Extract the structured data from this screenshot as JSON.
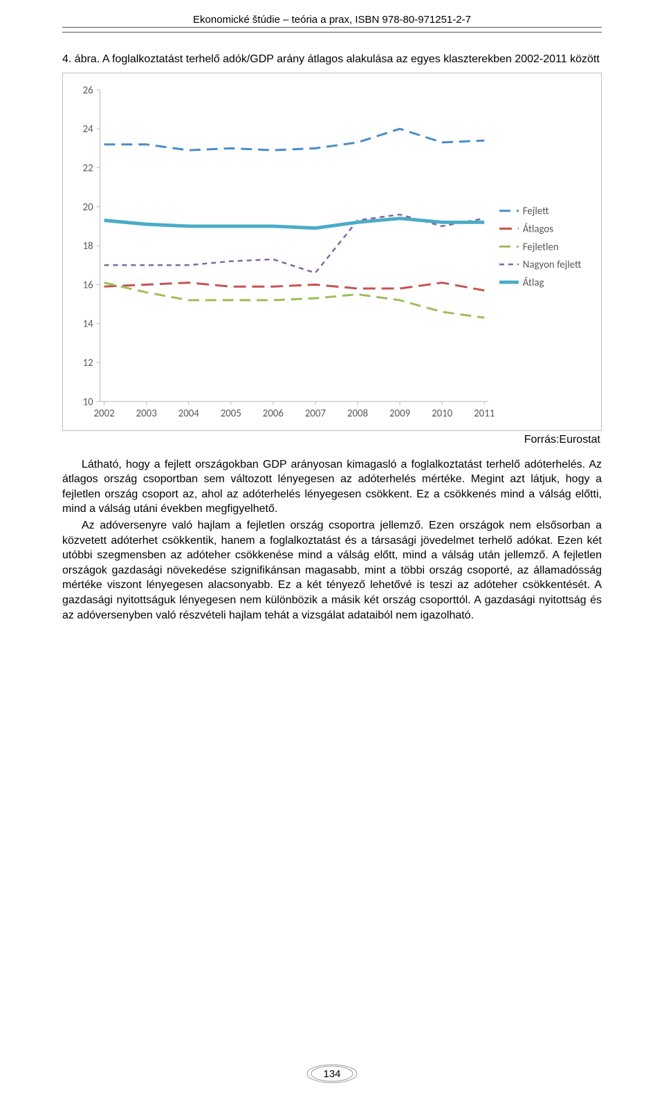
{
  "header": "Ekonomické štúdie – teória a prax, ISBN 978-80-971251-2-7",
  "figure_caption_prefix": "4. ábra. ",
  "figure_caption": "A foglalkoztatást terhelő adók/GDP arány átlagos alakulása az egyes klaszterekben 2002-2011 között",
  "source": "Forrás:Eurostat",
  "paragraph1": "Látható, hogy a fejlett országokban GDP arányosan kimagasló a foglalkoztatást terhelő adóterhelés. Az átlagos ország csoportban sem változott lényegesen az adóterhelés mértéke. Megint azt látjuk, hogy a fejletlen ország csoport az, ahol az adóterhelés lényegesen csökkent. Ez a csökkenés mind a válság előtti, mind a válság utáni években megfigyelhető.",
  "paragraph2": "Az adóversenyre való hajlam a fejletlen ország csoportra jellemző. Ezen országok nem elsősorban a közvetett adóterhet csökkentik, hanem a foglalkoztatást és a társasági jövedelmet terhelő adókat. Ezen két utóbbi szegmensben az adóteher csökkenése mind a válság előtt, mind a válság után jellemző. A fejletlen országok gazdasági növekedése szignifikánsan magasabb, mint a többi ország csoporté, az államadósság mértéke viszont lényegesen alacsonyabb. Ez a két tényező lehetővé is teszi az adóteher csökkentését. A gazdasági nyitottságuk lényegesen nem különbözik a másik két ország csoporttól. A gazdasági nyitottság és az adóversenyben való részvételi hajlam tehát a vizsgálat adataiból nem igazolható.",
  "page_number": "134",
  "chart": {
    "type": "line",
    "background_color": "#ffffff",
    "tick_font_size": 15,
    "legend_font_size": 15,
    "axis_color": "#b7b7b7",
    "xlim": [
      2002,
      2011
    ],
    "ylim": [
      10,
      26
    ],
    "ytick_step": 2,
    "yticks": [
      10,
      12,
      14,
      16,
      18,
      20,
      22,
      24,
      26
    ],
    "xticks": [
      2002,
      2003,
      2004,
      2005,
      2006,
      2007,
      2008,
      2009,
      2010,
      2011
    ],
    "series": [
      {
        "name": "Fejlett",
        "color": "#478cc9",
        "width": 3,
        "dash": "16,9",
        "values": [
          23.2,
          23.2,
          22.9,
          23.0,
          22.9,
          23.0,
          23.3,
          24.0,
          23.3,
          23.4
        ]
      },
      {
        "name": "Átlagos",
        "color": "#c8524f",
        "width": 3,
        "dash": "18,9",
        "values": [
          15.9,
          16.0,
          16.1,
          15.9,
          15.9,
          16.0,
          15.8,
          15.8,
          16.1,
          15.7
        ]
      },
      {
        "name": "Fejletlen",
        "color": "#9bbe59",
        "width": 3,
        "dash": "16,9",
        "values": [
          16.1,
          15.6,
          15.2,
          15.2,
          15.2,
          15.3,
          15.5,
          15.2,
          14.6,
          14.3
        ]
      },
      {
        "name": "Nagyon fejlett",
        "color": "#8165a3",
        "width": 2.5,
        "dash": "7,6",
        "values": [
          17.0,
          17.0,
          17.0,
          17.2,
          17.3,
          16.6,
          19.3,
          19.6,
          19.0,
          19.4
        ]
      },
      {
        "name": "Átlag",
        "color": "#4aacc7",
        "width": 5,
        "dash": "",
        "values": [
          19.3,
          19.1,
          19.0,
          19.0,
          19.0,
          18.9,
          19.2,
          19.4,
          19.2,
          19.2
        ]
      }
    ]
  }
}
